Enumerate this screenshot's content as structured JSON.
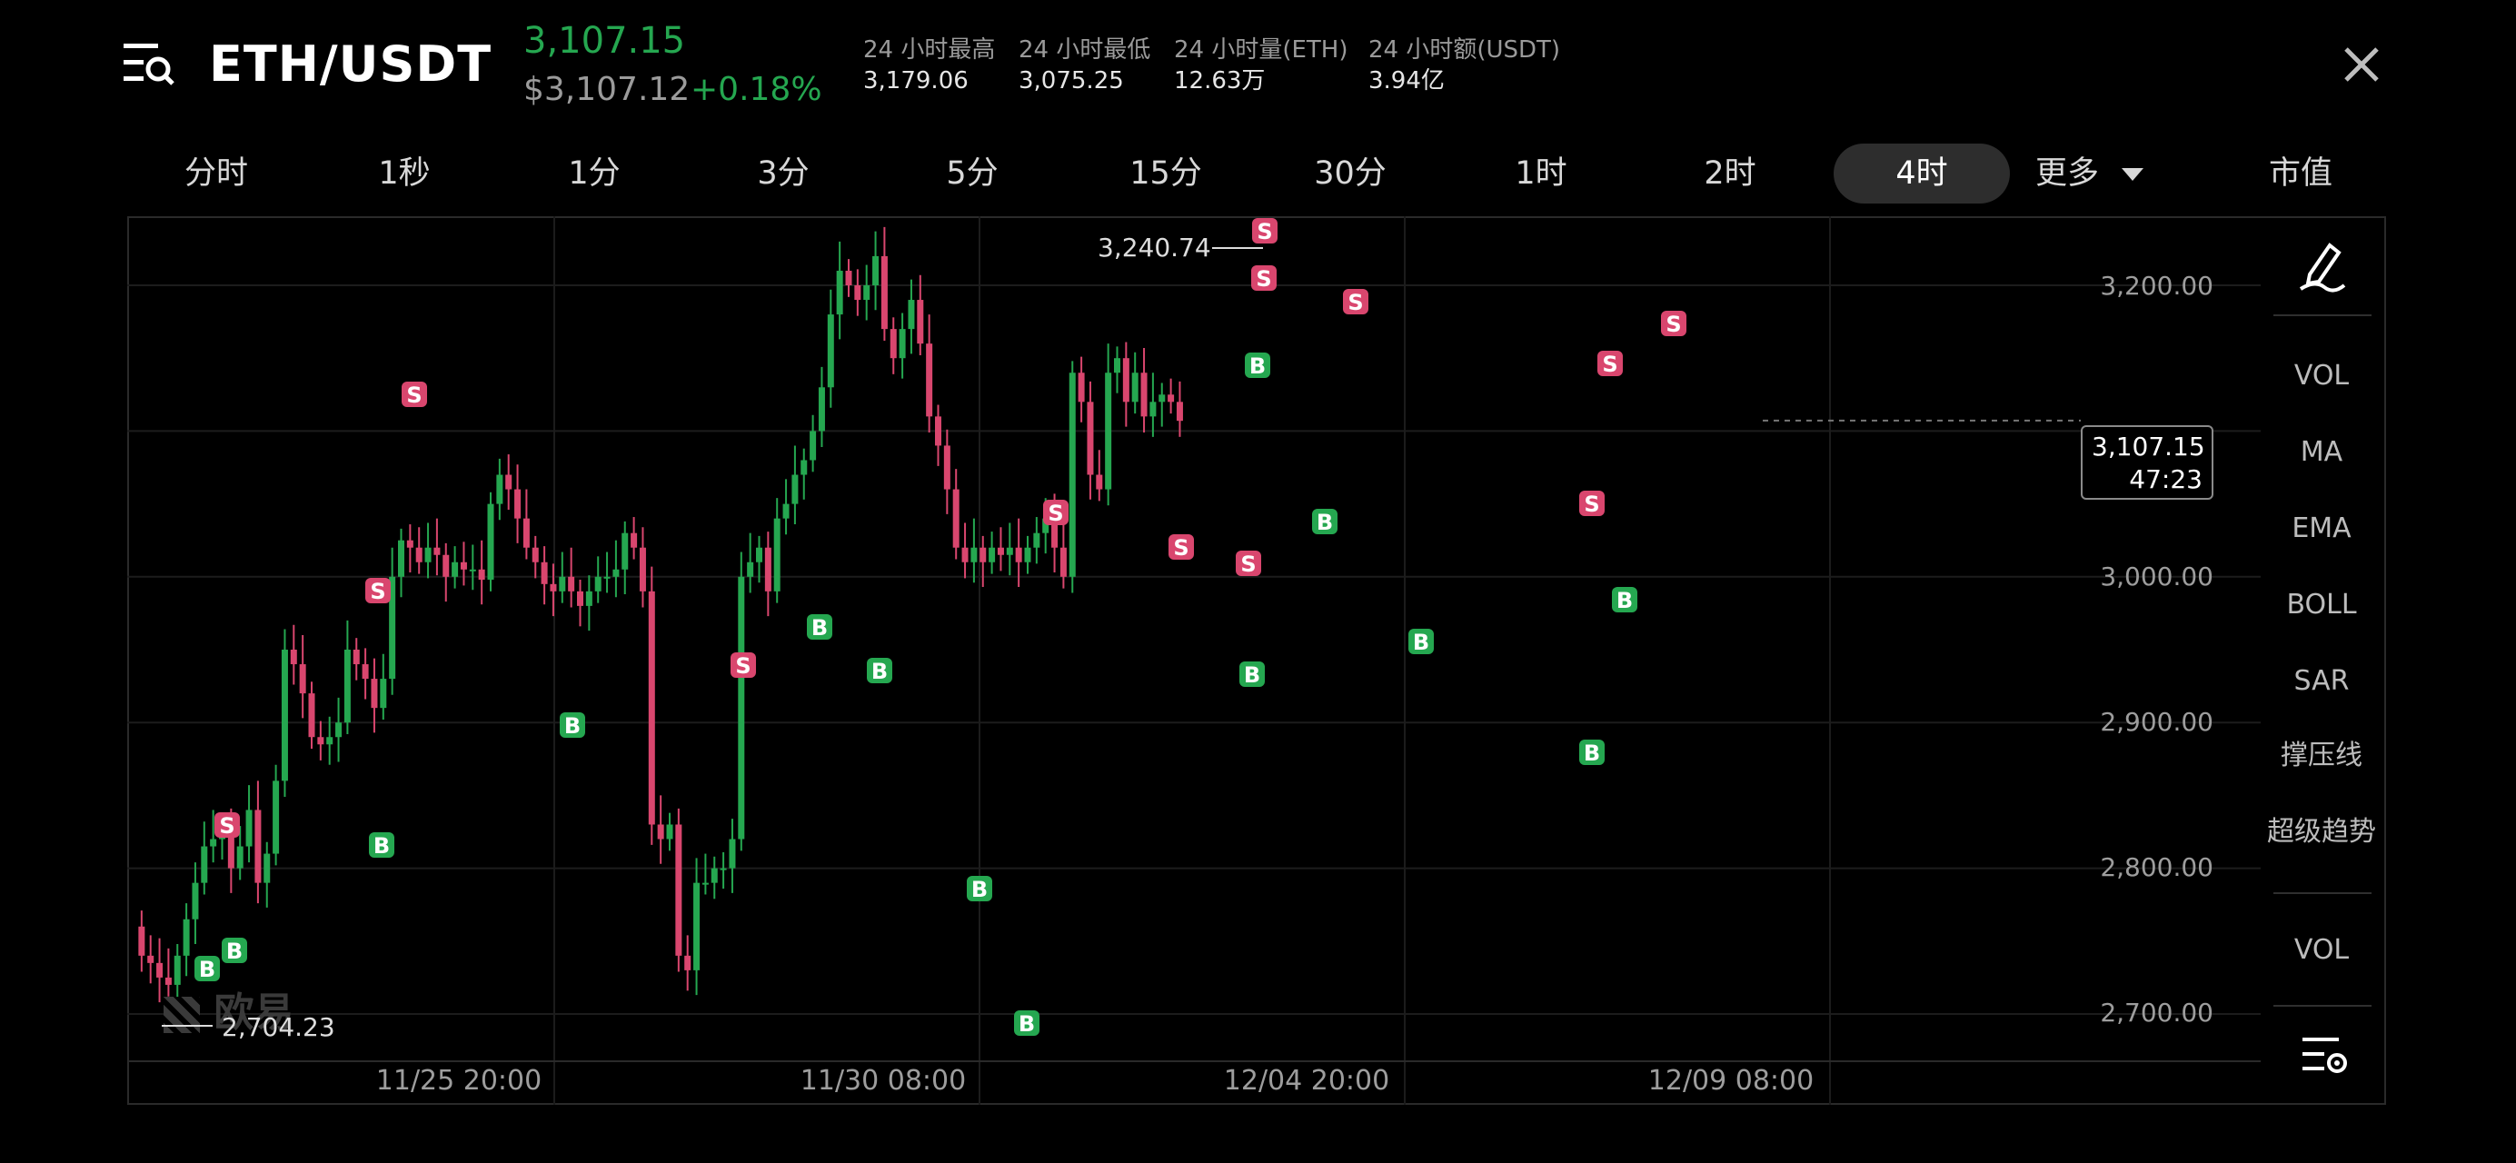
{
  "header": {
    "pair": "ETH/USDT",
    "last_price": "3,107.15",
    "usd_price": "$3,107.12",
    "change": "+0.18%",
    "stats": [
      {
        "label": "24 小时最高",
        "value": "3,179.06"
      },
      {
        "label": "24 小时最低",
        "value": "3,075.25"
      },
      {
        "label": "24 小时量(ETH)",
        "value": "12.63万"
      },
      {
        "label": "24 小时额(USDT)",
        "value": "3.94亿"
      }
    ]
  },
  "timeframes": [
    {
      "label": "分时"
    },
    {
      "label": "1秒"
    },
    {
      "label": "1分"
    },
    {
      "label": "3分"
    },
    {
      "label": "5分"
    },
    {
      "label": "15分"
    },
    {
      "label": "30分"
    },
    {
      "label": "1时"
    },
    {
      "label": "2时"
    },
    {
      "label": "4时",
      "active": true
    },
    {
      "label": "更多"
    },
    {
      "label": "市值"
    }
  ],
  "side_tools": [
    "VOL",
    "MA",
    "EMA",
    "BOLL",
    "SAR",
    "撑压线",
    "超级趋势",
    "VOL"
  ],
  "chart": {
    "y_ticks": [
      "3,200.00",
      "3,000.00",
      "2,900.00",
      "2,800.00",
      "2,700.00"
    ],
    "x_ticks": [
      "11/25 20:00",
      "11/30 08:00",
      "12/04 20:00",
      "12/09 08:00"
    ],
    "current_price": "3,107.15",
    "countdown": "47:23",
    "high_label": "3,240.74",
    "low_label": "2,704.23",
    "watermark": "欧易",
    "buy_marker": "B",
    "sell_marker": "S"
  },
  "colors": {
    "up": "#25a750",
    "down": "#d9466e",
    "background": "#000000",
    "grid": "#1f1f1f"
  }
}
